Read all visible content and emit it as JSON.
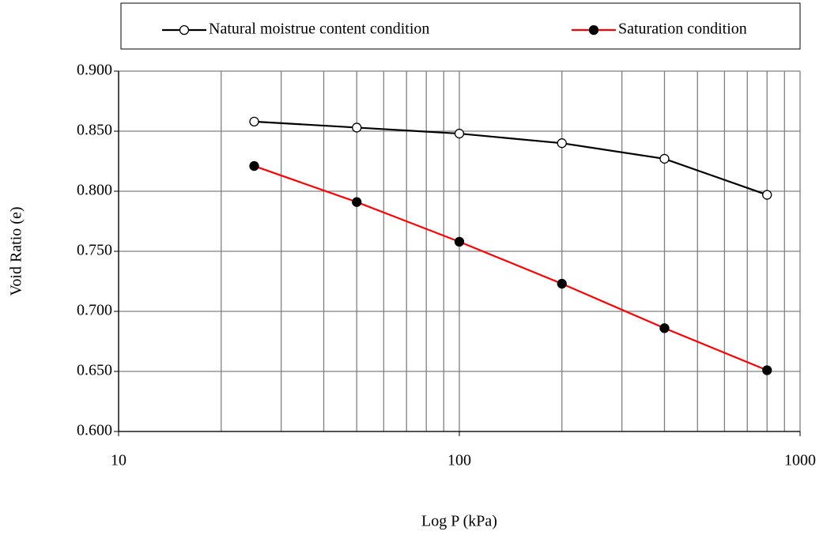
{
  "chart_data": {
    "type": "line",
    "x_label": "Log P (kPa)",
    "y_label": "Void Ratio (e)",
    "x": [
      25,
      50,
      100,
      200,
      400,
      800
    ],
    "series": [
      {
        "name": "Natural moistrue content condition",
        "color": "#000000",
        "marker_fill": "#ffffff",
        "values": [
          0.858,
          0.853,
          0.848,
          0.84,
          0.827,
          0.797
        ]
      },
      {
        "name": "Saturation condition",
        "color": "#ff0000",
        "marker_fill": "#000000",
        "values": [
          0.821,
          0.791,
          0.758,
          0.723,
          0.686,
          0.651
        ]
      }
    ],
    "xscale": "log",
    "xlim": [
      10,
      1000
    ],
    "xticks": [
      10,
      100,
      1000
    ],
    "xminorticks": [
      20,
      30,
      40,
      50,
      60,
      70,
      80,
      90,
      200,
      300,
      400,
      500,
      600,
      700,
      800,
      900
    ],
    "ylim": [
      0.6,
      0.9
    ],
    "yticks": [
      {
        "value": 0.6,
        "label": "0.600"
      },
      {
        "value": 0.65,
        "label": "0.650"
      },
      {
        "value": 0.7,
        "label": "0.700"
      },
      {
        "value": 0.75,
        "label": "0.750"
      },
      {
        "value": 0.8,
        "label": "0.800"
      },
      {
        "value": 0.85,
        "label": "0.850"
      },
      {
        "value": 0.9,
        "label": "0.900"
      }
    ],
    "grid": true,
    "legend": "top"
  }
}
